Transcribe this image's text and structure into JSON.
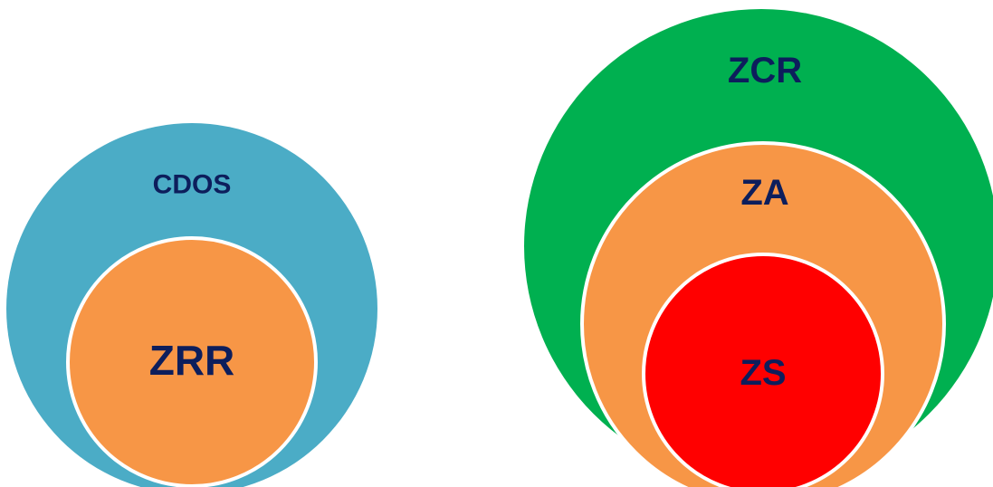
{
  "colors": {
    "cdos": "#4bacc6",
    "zrr": "#f79646",
    "zcr": "#00b050",
    "za": "#f79646",
    "zs": "#ff0000",
    "outline": "#ffffff",
    "text": "#0d1e5c"
  },
  "left_group": {
    "outer_label": "CDOS",
    "inner_label": "ZRR"
  },
  "right_group": {
    "outer_label": "ZCR",
    "middle_label": "ZA",
    "inner_label": "ZS"
  }
}
